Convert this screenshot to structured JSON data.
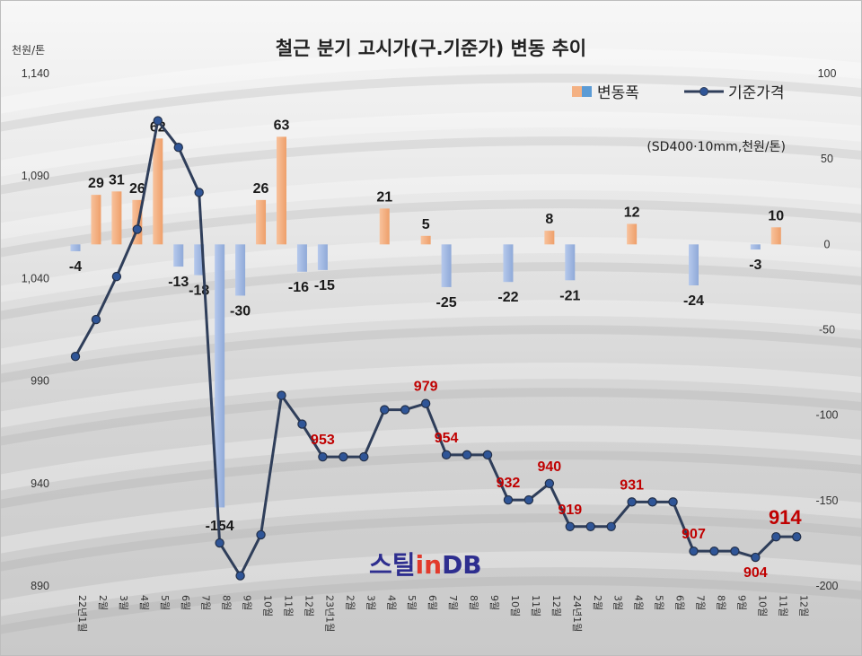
{
  "chart_data": {
    "type": "bar+line",
    "title": "철근 분기 고시가(구.기준가) 변동 추이",
    "left_axis_unit": "천원/톤",
    "subtitle": "(SD400·10mm,천원/톤)",
    "left_axis": {
      "min": 890,
      "max": 1140,
      "ticks": [
        890,
        940,
        990,
        1040,
        1090,
        1140
      ]
    },
    "right_axis": {
      "min": -200,
      "max": 100,
      "ticks": [
        100,
        50,
        0,
        -50,
        -100,
        -150,
        -200
      ]
    },
    "categories": [
      "22년1월",
      "2월",
      "3월",
      "4월",
      "5월",
      "6월",
      "7월",
      "8월",
      "9월",
      "10월",
      "11월",
      "12월",
      "23년1월",
      "2월",
      "3월",
      "4월",
      "5월",
      "6월",
      "7월",
      "8월",
      "9월",
      "10월",
      "11월",
      "12월",
      "24년1월",
      "2월",
      "3월",
      "4월",
      "5월",
      "6월",
      "7월",
      "8월",
      "9월",
      "10월",
      "11월",
      "12월"
    ],
    "category_display": [
      {
        "pre": "22년",
        "num": "1",
        "unit": "월"
      },
      {
        "pre": "",
        "num": "2",
        "unit": "월"
      },
      {
        "pre": "",
        "num": "3",
        "unit": "월"
      },
      {
        "pre": "",
        "num": "4",
        "unit": "월"
      },
      {
        "pre": "",
        "num": "5",
        "unit": "월"
      },
      {
        "pre": "",
        "num": "6",
        "unit": "월"
      },
      {
        "pre": "",
        "num": "7",
        "unit": "월"
      },
      {
        "pre": "",
        "num": "8",
        "unit": "월"
      },
      {
        "pre": "",
        "num": "9",
        "unit": "월"
      },
      {
        "pre": "",
        "num": "10",
        "unit": "월"
      },
      {
        "pre": "",
        "num": "11",
        "unit": "월"
      },
      {
        "pre": "",
        "num": "12",
        "unit": "월"
      },
      {
        "pre": "23년",
        "num": "1",
        "unit": "월"
      },
      {
        "pre": "",
        "num": "2",
        "unit": "월"
      },
      {
        "pre": "",
        "num": "3",
        "unit": "월"
      },
      {
        "pre": "",
        "num": "4",
        "unit": "월"
      },
      {
        "pre": "",
        "num": "5",
        "unit": "월"
      },
      {
        "pre": "",
        "num": "6",
        "unit": "월"
      },
      {
        "pre": "",
        "num": "7",
        "unit": "월"
      },
      {
        "pre": "",
        "num": "8",
        "unit": "월"
      },
      {
        "pre": "",
        "num": "9",
        "unit": "월"
      },
      {
        "pre": "",
        "num": "10",
        "unit": "월"
      },
      {
        "pre": "",
        "num": "11",
        "unit": "월"
      },
      {
        "pre": "",
        "num": "12",
        "unit": "월"
      },
      {
        "pre": "24년",
        "num": "1",
        "unit": "월"
      },
      {
        "pre": "",
        "num": "2",
        "unit": "월"
      },
      {
        "pre": "",
        "num": "3",
        "unit": "월"
      },
      {
        "pre": "",
        "num": "4",
        "unit": "월"
      },
      {
        "pre": "",
        "num": "5",
        "unit": "월"
      },
      {
        "pre": "",
        "num": "6",
        "unit": "월"
      },
      {
        "pre": "",
        "num": "7",
        "unit": "월"
      },
      {
        "pre": "",
        "num": "8",
        "unit": "월"
      },
      {
        "pre": "",
        "num": "9",
        "unit": "월"
      },
      {
        "pre": "",
        "num": "10",
        "unit": "월"
      },
      {
        "pre": "",
        "num": "11",
        "unit": "월"
      },
      {
        "pre": "",
        "num": "12",
        "unit": "월"
      }
    ],
    "series": [
      {
        "name": "변동폭",
        "type": "bar",
        "axis": "right",
        "color_positive": "#f4b183",
        "color_negative": "#9db6e2",
        "values": [
          -4,
          29,
          31,
          26,
          62,
          -13,
          -18,
          -154,
          -30,
          26,
          63,
          -16,
          -15,
          null,
          null,
          21,
          null,
          5,
          -25,
          null,
          null,
          -22,
          null,
          8,
          -21,
          null,
          null,
          12,
          null,
          null,
          -24,
          null,
          null,
          -3,
          10,
          null
        ],
        "labels": [
          "-4",
          "29",
          "31",
          "26",
          "62",
          "-13",
          "-18",
          "-154",
          "-30",
          "26",
          "63",
          "-16",
          "-15",
          "",
          "",
          "21",
          "",
          "5",
          "-25",
          "",
          "",
          "-22",
          "",
          "8",
          "-21",
          "",
          "",
          "12",
          "",
          "",
          "-24",
          "",
          "",
          "-3",
          "10",
          ""
        ]
      },
      {
        "name": "기준가격",
        "type": "line",
        "axis": "left",
        "color": "#2f3e5a",
        "values": [
          1002,
          1020,
          1041,
          1064,
          1117,
          1104,
          1082,
          911,
          895,
          915,
          983,
          969,
          953,
          953,
          953,
          976,
          976,
          979,
          954,
          954,
          954,
          932,
          932,
          940,
          919,
          919,
          919,
          931,
          931,
          931,
          907,
          907,
          907,
          904,
          914,
          914
        ],
        "labels": [
          "",
          "",
          "",
          "",
          "",
          "",
          "",
          "",
          "",
          "",
          "",
          "",
          "953",
          "",
          "",
          "",
          "",
          "979",
          "954",
          "",
          "",
          "932",
          "",
          "940",
          "919",
          "",
          "",
          "931",
          "",
          "",
          "907",
          "",
          "",
          "904",
          "914",
          ""
        ]
      }
    ],
    "legend": {
      "position": "top-right",
      "items": [
        "변동폭",
        "기준가격"
      ]
    },
    "grid": false
  },
  "logo": {
    "part_a": "스틸",
    "part_b": "in",
    "part_c": "DB"
  }
}
